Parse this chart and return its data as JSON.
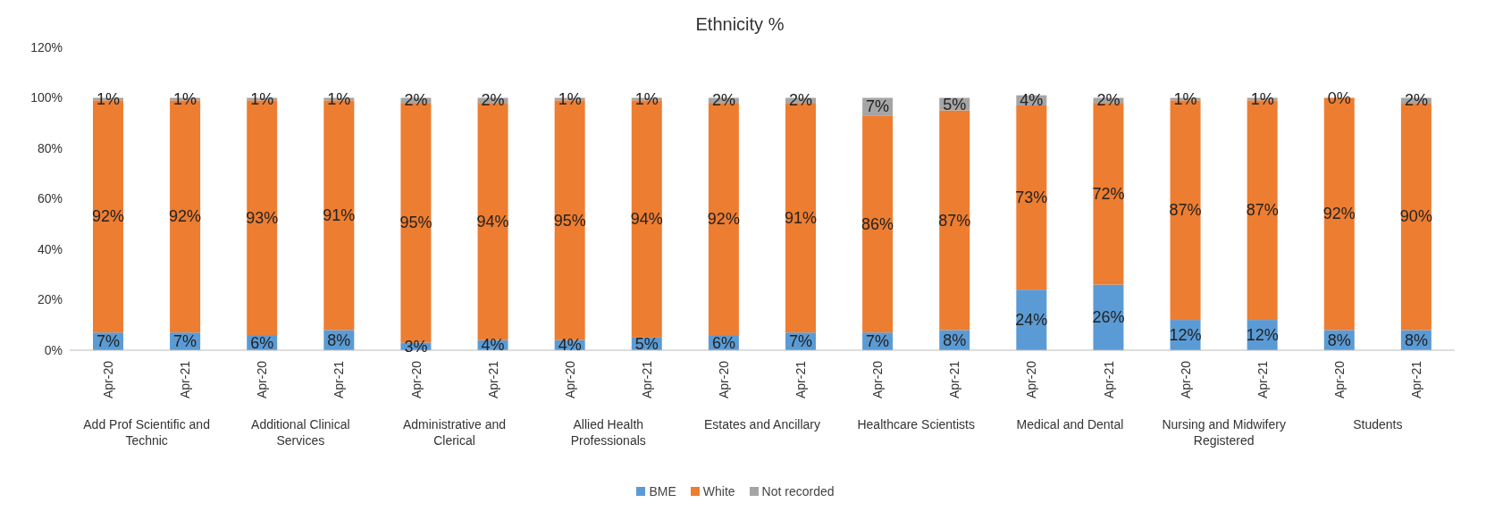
{
  "chart_data": {
    "type": "bar",
    "title": "Ethnicity %",
    "stacked": true,
    "legend": "bottom",
    "categories": [
      "Apr-20",
      "Apr-21",
      "Apr-20",
      "Apr-21",
      "Apr-20",
      "Apr-21",
      "Apr-20",
      "Apr-21",
      "Apr-20",
      "Apr-21",
      "Apr-20",
      "Apr-21",
      "Apr-20",
      "Apr-21",
      "Apr-20",
      "Apr-21",
      "Apr-20",
      "Apr-21"
    ],
    "annotations": [
      "Add Prof Scientific and Technic",
      "Additional Clinical Services",
      "Administrative and Clerical",
      "Allied Health Professionals",
      "Estates and Ancillary",
      "Healthcare Scientists",
      "Medical and Dental",
      "Nursing and Midwifery Registered",
      "Students"
    ],
    "ylim": [
      0,
      120
    ],
    "yticks": [
      {
        "value": 0,
        "label": "0%"
      },
      {
        "value": 20,
        "label": "20%"
      },
      {
        "value": 40,
        "label": "40%"
      },
      {
        "value": 60,
        "label": "60%"
      },
      {
        "value": 80,
        "label": "80%"
      },
      {
        "value": 100,
        "label": "100%"
      },
      {
        "value": 120,
        "label": "120%"
      }
    ],
    "series": [
      {
        "name": "BME",
        "color": "#5b9bd5",
        "values": [
          7,
          7,
          6,
          8,
          3,
          4,
          4,
          5,
          6,
          7,
          7,
          8,
          24,
          26,
          12,
          12,
          8,
          8
        ],
        "value_labels": [
          "7%",
          "7%",
          "6%",
          "8%",
          "3%",
          "4%",
          "4%",
          "5%",
          "6%",
          "7%",
          "7%",
          "8%",
          "24%",
          "26%",
          "12%",
          "12%",
          "8%",
          "8%"
        ]
      },
      {
        "name": "White",
        "color": "#ed7d31",
        "values": [
          92,
          92,
          93,
          91,
          95,
          94,
          95,
          94,
          92,
          91,
          86,
          87,
          73,
          72,
          87,
          87,
          92,
          90
        ],
        "value_labels": [
          "92%",
          "92%",
          "93%",
          "91%",
          "95%",
          "94%",
          "95%",
          "94%",
          "92%",
          "91%",
          "86%",
          "87%",
          "73%",
          "72%",
          "87%",
          "87%",
          "92%",
          "90%"
        ]
      },
      {
        "name": "Not recorded",
        "color": "#a5a5a5",
        "values": [
          1,
          1,
          1,
          1,
          2,
          2,
          1,
          1,
          2,
          2,
          7,
          5,
          4,
          2,
          1,
          1,
          0,
          2
        ],
        "value_labels": [
          "1%",
          "1%",
          "1%",
          "1%",
          "2%",
          "2%",
          "1%",
          "1%",
          "2%",
          "2%",
          "7%",
          "5%",
          "4%",
          "2%",
          "1%",
          "1%",
          "0%",
          "2%"
        ]
      }
    ]
  }
}
